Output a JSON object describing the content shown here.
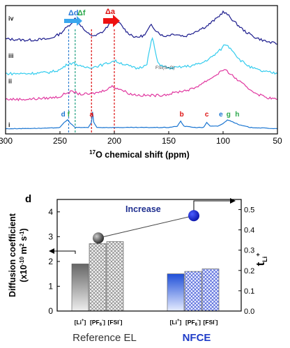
{
  "chart_data": [
    {
      "type": "line",
      "title": "",
      "xlabel_prefix": "17",
      "xlabel": "O chemical shift (ppm)",
      "xlim": [
        300,
        50
      ],
      "x_ticks": [
        300,
        250,
        200,
        150,
        100,
        50
      ],
      "series": [
        {
          "name": "iv",
          "color": "#1a1a8c",
          "offset": 0.84,
          "points": [
            [
              300,
              0.74
            ],
            [
              280,
              0.73
            ],
            [
              260,
              0.74
            ],
            [
              250,
              0.78
            ],
            [
              245,
              0.82
            ],
            [
              240,
              0.86
            ],
            [
              236,
              0.9
            ],
            [
              232,
              0.86
            ],
            [
              226,
              0.79
            ],
            [
              218,
              0.76
            ],
            [
              210,
              0.8
            ],
            [
              204,
              0.86
            ],
            [
              200,
              0.9
            ],
            [
              195,
              0.86
            ],
            [
              188,
              0.79
            ],
            [
              180,
              0.75
            ],
            [
              172,
              0.77
            ],
            [
              166,
              0.85
            ],
            [
              162,
              0.81
            ],
            [
              155,
              0.76
            ],
            [
              145,
              0.78
            ],
            [
              135,
              0.76
            ],
            [
              125,
              0.8
            ],
            [
              115,
              0.84
            ],
            [
              106,
              0.9
            ],
            [
              100,
              0.95
            ],
            [
              96,
              0.93
            ],
            [
              88,
              0.86
            ],
            [
              80,
              0.8
            ],
            [
              70,
              0.75
            ],
            [
              60,
              0.72
            ],
            [
              50,
              0.7
            ]
          ]
        },
        {
          "name": "iii",
          "color": "#33ccee",
          "offset": 0.55,
          "points": [
            [
              300,
              0.47
            ],
            [
              280,
              0.47
            ],
            [
              260,
              0.48
            ],
            [
              250,
              0.5
            ],
            [
              242,
              0.55
            ],
            [
              236,
              0.55
            ],
            [
              230,
              0.52
            ],
            [
              220,
              0.52
            ],
            [
              210,
              0.54
            ],
            [
              200,
              0.57
            ],
            [
              190,
              0.54
            ],
            [
              180,
              0.51
            ],
            [
              175,
              0.52
            ],
            [
              170,
              0.55
            ],
            [
              167,
              0.68
            ],
            [
              165,
              0.75
            ],
            [
              163,
              0.67
            ],
            [
              160,
              0.55
            ],
            [
              150,
              0.51
            ],
            [
              140,
              0.52
            ],
            [
              130,
              0.53
            ],
            [
              120,
              0.55
            ],
            [
              110,
              0.6
            ],
            [
              102,
              0.66
            ],
            [
              98,
              0.7
            ],
            [
              92,
              0.66
            ],
            [
              85,
              0.58
            ],
            [
              75,
              0.52
            ],
            [
              65,
              0.49
            ],
            [
              50,
              0.47
            ]
          ]
        },
        {
          "name": "ii",
          "color": "#e0369f",
          "offset": 0.35,
          "points": [
            [
              300,
              0.27
            ],
            [
              280,
              0.27
            ],
            [
              260,
              0.28
            ],
            [
              250,
              0.29
            ],
            [
              244,
              0.32
            ],
            [
              238,
              0.33
            ],
            [
              232,
              0.31
            ],
            [
              222,
              0.31
            ],
            [
              212,
              0.33
            ],
            [
              202,
              0.37
            ],
            [
              195,
              0.35
            ],
            [
              185,
              0.31
            ],
            [
              175,
              0.3
            ],
            [
              160,
              0.3
            ],
            [
              150,
              0.31
            ],
            [
              140,
              0.33
            ],
            [
              128,
              0.35
            ],
            [
              118,
              0.4
            ],
            [
              108,
              0.45
            ],
            [
              100,
              0.5
            ],
            [
              95,
              0.48
            ],
            [
              88,
              0.43
            ],
            [
              78,
              0.36
            ],
            [
              68,
              0.31
            ],
            [
              58,
              0.28
            ],
            [
              50,
              0.27
            ]
          ]
        },
        {
          "name": "i",
          "color": "#1a75d1",
          "offset": 0.05,
          "points": [
            [
              300,
              0.04
            ],
            [
              260,
              0.045
            ],
            [
              250,
              0.05
            ],
            [
              246,
              0.09
            ],
            [
              243,
              0.11
            ],
            [
              240,
              0.08
            ],
            [
              236,
              0.05
            ],
            [
              224,
              0.05
            ],
            [
              221,
              0.09
            ],
            [
              220,
              0.17
            ],
            [
              219,
              0.09
            ],
            [
              216,
              0.05
            ],
            [
              200,
              0.05
            ],
            [
              180,
              0.05
            ],
            [
              150,
              0.05
            ],
            [
              142,
              0.06
            ],
            [
              139,
              0.1
            ],
            [
              136,
              0.06
            ],
            [
              125,
              0.05
            ],
            [
              118,
              0.05
            ],
            [
              115,
              0.09
            ],
            [
              112,
              0.06
            ],
            [
              105,
              0.06
            ],
            [
              100,
              0.08
            ],
            [
              96,
              0.11
            ],
            [
              90,
              0.09
            ],
            [
              85,
              0.07
            ],
            [
              75,
              0.05
            ],
            [
              60,
              0.045
            ],
            [
              50,
              0.04
            ]
          ]
        }
      ],
      "peak_labels": [
        {
          "text": "d",
          "x": 247,
          "color": "#1a75d1"
        },
        {
          "text": "f",
          "x": 242,
          "color": "#2aa84a"
        },
        {
          "text": "a",
          "x": 221,
          "color": "#dd1111"
        },
        {
          "text": "b",
          "x": 138,
          "color": "#dd1111"
        },
        {
          "text": "c",
          "x": 115,
          "color": "#dd1111"
        },
        {
          "text": "e",
          "x": 102,
          "color": "#1a75d1"
        },
        {
          "text": "g",
          "x": 95,
          "color": "#2aa84a"
        },
        {
          "text": "h",
          "x": 87,
          "color": "#2aa84a"
        }
      ],
      "shift_labels": [
        {
          "text": "Δd",
          "color": "#2979d9"
        },
        {
          "text": "Δf",
          "color": "#2aa84a"
        },
        {
          "text": "Δa",
          "color": "#dd1111"
        }
      ],
      "annotation": "FSI(S=O)",
      "dashed_lines": [
        {
          "x": 242,
          "color": "#2f7fd0"
        },
        {
          "x": 236,
          "color": "#20a080"
        },
        {
          "x": 221,
          "color": "#dd1111"
        },
        {
          "x": 200,
          "color": "#dd1111"
        }
      ]
    },
    {
      "type": "bar",
      "panel_label": "d",
      "ylabel": "Diffusion coefficient",
      "ylabel_unit": "(x10",
      "ylabel_unit_exp": "-10",
      "ylabel_unit_mid": " m",
      "ylabel_unit_exp2": "2",
      "ylabel_unit_end": " s",
      "ylabel_unit_exp3": "-1",
      "ylabel_unit_close": ")",
      "ylim": [
        0,
        4.5
      ],
      "y_ticks": [
        0,
        1,
        2,
        3,
        4
      ],
      "right_ylabel_main": "t",
      "right_ylabel_sub": "Li",
      "right_ylabel_sup": "+",
      "right_ylim": [
        0,
        0.55
      ],
      "right_ticks": [
        "0.0",
        "0.1",
        "0.2",
        "0.3",
        "0.4",
        "0.5"
      ],
      "groups": [
        {
          "name": "Reference EL",
          "color": "#333333",
          "t_li": 0.36,
          "bars": [
            {
              "label": "[Li",
              "sup": "+",
              "tail": "]",
              "sub": "",
              "value": 1.9,
              "fill": "grad-gray"
            },
            {
              "label": "[PF",
              "sub": "6",
              "sup": "-",
              "tail": "]",
              "value": 2.72,
              "fill": "hatch-gray"
            },
            {
              "label": "[FSI",
              "sub": "",
              "sup": "-",
              "tail": "]",
              "value": 2.8,
              "fill": "hatch-gray"
            }
          ]
        },
        {
          "name": "NFCE",
          "color": "#1f3cc8",
          "t_li": 0.47,
          "bars": [
            {
              "label": "[Li",
              "sup": "+",
              "tail": "]",
              "sub": "",
              "value": 1.5,
              "fill": "grad-blue"
            },
            {
              "label": "[PF",
              "sub": "6",
              "sup": "-",
              "tail": "]",
              "value": 1.6,
              "fill": "hatch-blue"
            },
            {
              "label": "[FSI",
              "sub": "",
              "sup": "-",
              "tail": "]",
              "value": 1.7,
              "fill": "hatch-blue"
            }
          ]
        }
      ],
      "annotation": "Increase",
      "annotation_color": "#1f2f8f"
    }
  ]
}
